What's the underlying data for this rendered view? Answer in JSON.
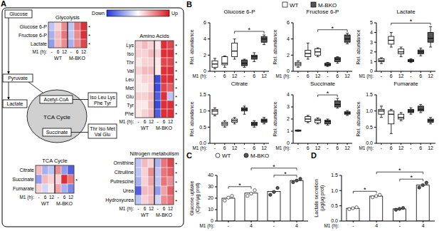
{
  "panels": [
    "A",
    "B",
    "C",
    "D"
  ],
  "groups": [
    {
      "name": "WT",
      "color": "#ffffff"
    },
    {
      "name": "M-BKO",
      "color": "#555555"
    }
  ],
  "diagram": {
    "column_label": "M1 (h):",
    "columns": [
      "-",
      "6",
      "12",
      "-",
      "6",
      "12"
    ],
    "colorbar": {
      "labels": [
        "Down",
        "Up"
      ],
      "range": [
        -1,
        1
      ]
    },
    "pathway": {
      "glucose": "Glucose",
      "pyruvate": "Pyruvate",
      "lactate": "Lactate",
      "acetyl_coa": "Acetyl-CoA",
      "tca": "TCA Cycle",
      "succinate": "Succinate",
      "amino_box_1": [
        "Iso Leu Lys",
        "Phe Tyr"
      ],
      "amino_box_2": [
        "Thr Iso Met",
        "Val Glu"
      ]
    },
    "heatmaps": [
      {
        "title": "Glycolysis",
        "rows": [
          {
            "name": "Glucose 6-P",
            "values": [
              -0.3,
              0.2,
              0.5,
              -0.3,
              0.6,
              0.9
            ],
            "mark": "*"
          },
          {
            "name": "Fructose 6-P",
            "values": [
              -0.4,
              0.3,
              0.6,
              -0.3,
              0.5,
              0.9
            ],
            "mark": "*"
          },
          {
            "name": "Lactate",
            "values": [
              -0.5,
              0.3,
              0.5,
              -0.4,
              0.5,
              0.8
            ],
            "mark": "*"
          }
        ]
      },
      {
        "title": "Amino Acids",
        "rows": [
          {
            "name": "Lys",
            "values": [
              0.2,
              0.3,
              0.2,
              0.1,
              0.9,
              0.8
            ],
            "mark": "*"
          },
          {
            "name": "Iso",
            "values": [
              0.2,
              0.2,
              0.3,
              0.2,
              0.9,
              0.9
            ],
            "mark": "*"
          },
          {
            "name": "Thr",
            "values": [
              0.1,
              0.2,
              0.2,
              0.1,
              0.8,
              0.8
            ],
            "mark": "*"
          },
          {
            "name": "Val",
            "values": [
              0.2,
              0.3,
              0.3,
              0.1,
              0.9,
              0.9
            ],
            "mark": "*"
          },
          {
            "name": "Leu",
            "values": [
              0.1,
              0.2,
              0.2,
              -0.9,
              0.9,
              0.9
            ],
            "mark": "*"
          },
          {
            "name": "Met",
            "values": [
              0.1,
              0.1,
              0.2,
              -0.9,
              0.8,
              0.7
            ],
            "mark": "*"
          },
          {
            "name": "Glu",
            "values": [
              0.2,
              0.2,
              0.3,
              -0.8,
              0.9,
              -0.3
            ],
            "mark": "*"
          },
          {
            "name": "Tyr",
            "values": [
              0.1,
              0.1,
              0.3,
              -0.9,
              0.9,
              0.9
            ],
            "mark": "*"
          },
          {
            "name": "Phe",
            "values": [
              0.1,
              0.2,
              0.3,
              -0.8,
              0.9,
              0.9
            ],
            "mark": "*"
          }
        ]
      },
      {
        "title": "TCA Cycle",
        "rows": [
          {
            "name": "Citrate",
            "values": [
              0.3,
              -0.4,
              -0.3,
              0.5,
              -0.5,
              -0.8
            ]
          },
          {
            "name": "Succinate",
            "values": [
              -0.5,
              0.3,
              0.2,
              0.2,
              0.9,
              0.6
            ],
            "mark": "*"
          },
          {
            "name": "Fumarate",
            "values": [
              0.2,
              -0.2,
              0.1,
              0.4,
              -0.4,
              -0.6
            ]
          }
        ]
      },
      {
        "title": "Nitrogen metabolism",
        "rows": [
          {
            "name": "Ornithine",
            "values": [
              -0.3,
              0.3,
              0.2,
              -0.4,
              0.6,
              0.8
            ],
            "mark": "*"
          },
          {
            "name": "Citrulline",
            "values": [
              -0.3,
              0.2,
              0.5,
              -0.3,
              0.6,
              0.7
            ],
            "mark": "*"
          },
          {
            "name": "Putrescine",
            "values": [
              -0.4,
              0.2,
              0.4,
              -0.3,
              0.6,
              0.5
            ],
            "mark": "*"
          },
          {
            "name": "Urea",
            "values": [
              -0.8,
              0.3,
              0.3,
              -0.5,
              0.4,
              0.7
            ],
            "mark": "*"
          },
          {
            "name": "Hydroxyurea",
            "values": [
              -0.3,
              0.2,
              0.3,
              -0.2,
              0.5,
              0.6
            ],
            "mark": "*"
          }
        ]
      }
    ]
  },
  "chart_data": [
    {
      "type": "box",
      "title": "Glucose 6-P",
      "y_label": "Rel. abundance",
      "x_label": "M1 (h):",
      "categories": [
        "-",
        "6",
        "12",
        "-",
        "6",
        "12"
      ],
      "boxes": [
        [
          0.3,
          0.5,
          0.9,
          1.3,
          1.6
        ],
        [
          0.5,
          0.8,
          1.0,
          1.8,
          1.9
        ],
        [
          1.5,
          1.8,
          2.5,
          3.5,
          4.0
        ],
        [
          0.5,
          0.7,
          1.0,
          1.4,
          1.5
        ],
        [
          1.2,
          1.5,
          1.8,
          2.0,
          2.3
        ],
        [
          3.3,
          3.6,
          4.0,
          4.3,
          4.5
        ]
      ],
      "colors": [
        "#ffffff",
        "#ffffff",
        "#ffffff",
        "#555555",
        "#555555",
        "#555555"
      ],
      "ylim": [
        0,
        6
      ],
      "yticks": [
        0,
        2,
        4,
        6
      ],
      "significance": [
        {
          "between": [
            2,
            5
          ],
          "label": "*"
        }
      ]
    },
    {
      "type": "box",
      "title": "Fructose 6-P",
      "y_label": "Rel. abundance",
      "x_label": "M1 (h):",
      "categories": [
        "-",
        "6",
        "12",
        "-",
        "6",
        "12"
      ],
      "boxes": [
        [
          0.5,
          0.7,
          0.9,
          1.1,
          1.3
        ],
        [
          1.5,
          1.8,
          2.2,
          2.6,
          3.5
        ],
        [
          1.8,
          2.0,
          2.4,
          2.8,
          2.9
        ],
        [
          0.6,
          0.7,
          0.8,
          1.0,
          1.1
        ],
        [
          1.0,
          1.2,
          1.5,
          1.7,
          1.8
        ],
        [
          3.4,
          3.6,
          4.0,
          4.5,
          4.7
        ]
      ],
      "colors": [
        "#ffffff",
        "#ffffff",
        "#ffffff",
        "#555555",
        "#555555",
        "#555555"
      ],
      "ylim": [
        0,
        6
      ],
      "yticks": [
        0,
        2,
        4,
        6
      ],
      "significance": [
        {
          "between": [
            2,
            5
          ],
          "label": "*"
        }
      ]
    },
    {
      "type": "box",
      "title": "Lactate",
      "y_label": "Rel. abundance",
      "x_label": "M1 (h):",
      "categories": [
        "-",
        "6",
        "12",
        "-",
        "6",
        "12"
      ],
      "boxes": [
        [
          0.8,
          1.0,
          1.1,
          1.3,
          1.4
        ],
        [
          2.5,
          2.8,
          3.2,
          3.6,
          4.0
        ],
        [
          1.5,
          1.8,
          2.0,
          2.3,
          2.5
        ],
        [
          0.9,
          1.0,
          1.1,
          1.2,
          1.3
        ],
        [
          1.6,
          1.8,
          2.0,
          2.2,
          2.4
        ],
        [
          2.5,
          3.0,
          3.4,
          4.0,
          4.6
        ]
      ],
      "colors": [
        "#ffffff",
        "#ffffff",
        "#ffffff",
        "#555555",
        "#555555",
        "#555555"
      ],
      "ylim": [
        0,
        5
      ],
      "yticks": [
        0,
        1,
        2,
        3,
        4,
        5
      ],
      "significance": [
        {
          "between": [
            1,
            5
          ],
          "label": "*"
        }
      ]
    },
    {
      "type": "box",
      "title": "Citrate",
      "y_label": "Rel. abundance",
      "x_label": "M1 (h):",
      "categories": [
        "-",
        "6",
        "12",
        "-",
        "6",
        "12"
      ],
      "boxes": [
        [
          0.85,
          0.9,
          1.0,
          1.05,
          1.1
        ],
        [
          0.5,
          0.55,
          0.6,
          0.65,
          0.7
        ],
        [
          0.6,
          0.65,
          0.7,
          0.75,
          0.8
        ],
        [
          0.9,
          1.0,
          1.05,
          1.1,
          1.15
        ],
        [
          0.5,
          0.55,
          0.6,
          0.65,
          0.7
        ],
        [
          0.6,
          0.65,
          0.7,
          0.75,
          0.8
        ]
      ],
      "colors": [
        "#ffffff",
        "#ffffff",
        "#ffffff",
        "#555555",
        "#555555",
        "#555555"
      ],
      "ylim": [
        0,
        1.5
      ],
      "yticks": [
        {
          "value": 0,
          "label": "0.0"
        },
        {
          "value": 0.5,
          "label": "0.5"
        },
        {
          "value": 1,
          "label": "1.0"
        },
        {
          "value": 1.5,
          "label": "1.5"
        }
      ],
      "significance": []
    },
    {
      "type": "box",
      "title": "Succinate",
      "y_label": "Rel. abundance",
      "x_label": "M1 (h):",
      "categories": [
        "-",
        "6",
        "12",
        "-",
        "6",
        "12"
      ],
      "boxes": [
        [
          1.0,
          1.0,
          1.05,
          1.1,
          1.1
        ],
        [
          1.7,
          1.8,
          2.0,
          2.2,
          2.3
        ],
        [
          1.6,
          1.7,
          1.9,
          2.0,
          2.1
        ],
        [
          1.5,
          1.6,
          1.8,
          1.9,
          2.0
        ],
        [
          2.9,
          3.0,
          3.2,
          3.5,
          3.7
        ],
        [
          2.3,
          2.4,
          2.5,
          2.6,
          2.7
        ]
      ],
      "colors": [
        "#ffffff",
        "#ffffff",
        "#ffffff",
        "#555555",
        "#555555",
        "#555555"
      ],
      "ylim": [
        0,
        4
      ],
      "yticks": [
        0,
        1,
        2,
        3,
        4
      ],
      "significance": [
        {
          "between": [
            2,
            4
          ],
          "label": "*"
        }
      ]
    },
    {
      "type": "box",
      "title": "Fumarate",
      "y_label": "Rel. abundance",
      "x_label": "M1 (h):",
      "categories": [
        "-",
        "6",
        "12",
        "-",
        "6",
        "12"
      ],
      "boxes": [
        [
          0.8,
          0.9,
          1.0,
          1.05,
          1.15
        ],
        [
          0.3,
          0.6,
          0.9,
          1.0,
          1.05
        ],
        [
          0.7,
          0.75,
          0.8,
          0.9,
          0.95
        ],
        [
          0.9,
          0.95,
          1.0,
          1.05,
          1.1
        ],
        [
          0.95,
          1.0,
          1.05,
          1.15,
          1.2
        ],
        [
          0.6,
          0.65,
          0.7,
          0.75,
          0.8
        ]
      ],
      "colors": [
        "#ffffff",
        "#ffffff",
        "#ffffff",
        "#555555",
        "#555555",
        "#555555"
      ],
      "ylim": [
        0,
        1.5
      ],
      "yticks": [
        {
          "value": 0,
          "label": "0.0"
        },
        {
          "value": 0.5,
          "label": "0.5"
        },
        {
          "value": 1,
          "label": "1.0"
        },
        {
          "value": 1.5,
          "label": "1.5"
        }
      ],
      "significance": []
    },
    {
      "type": "bar",
      "y_label": [
        "Glucose uptake",
        "(Cpm/μg prot)"
      ],
      "x_label": "M1 (h):",
      "categories": [
        "-",
        "4",
        "-",
        "4"
      ],
      "values": [
        20,
        24.5,
        26,
        35.5
      ],
      "points": [
        [
          18,
          20.5,
          22
        ],
        [
          22,
          24,
          27
        ],
        [
          23,
          25.5,
          29
        ],
        [
          34,
          35.5,
          37
        ]
      ],
      "point_colors": [
        "#ffffff",
        "#ffffff",
        "#555555",
        "#555555"
      ],
      "color": "#ffffff",
      "ylim": [
        0,
        40
      ],
      "yticks": [
        0,
        10,
        20,
        30,
        40
      ],
      "significance": [
        {
          "between": [
            0,
            1
          ],
          "label": "*"
        },
        {
          "between": [
            2,
            3
          ],
          "label": "*"
        },
        {
          "between": [
            1,
            3
          ],
          "label": "*"
        }
      ]
    },
    {
      "type": "bar",
      "y_label": [
        "Lactate secretion",
        "(μg/μg prot)"
      ],
      "x_label": "M1 (h):",
      "categories": [
        "-",
        "4",
        "-",
        "4"
      ],
      "values": [
        0.42,
        0.82,
        0.4,
        1.18
      ],
      "points": [
        [
          0.39,
          0.42,
          0.45
        ],
        [
          0.78,
          0.82,
          0.86
        ],
        [
          0.37,
          0.4,
          0.43
        ],
        [
          1.1,
          1.18,
          1.26
        ]
      ],
      "point_colors": [
        "#ffffff",
        "#ffffff",
        "#555555",
        "#555555"
      ],
      "color": "#ffffff",
      "ylim": [
        0,
        1.5
      ],
      "yticks": [
        {
          "value": 0,
          "label": "0.0"
        },
        {
          "value": 0.5,
          "label": "0.5"
        },
        {
          "value": 1,
          "label": "1.0"
        },
        {
          "value": 1.5,
          "label": "1.5"
        }
      ],
      "significance": [
        {
          "between": [
            0,
            1
          ],
          "label": "*"
        },
        {
          "between": [
            2,
            3
          ],
          "label": "*"
        },
        {
          "between": [
            1,
            3
          ],
          "label": "*"
        }
      ]
    }
  ]
}
